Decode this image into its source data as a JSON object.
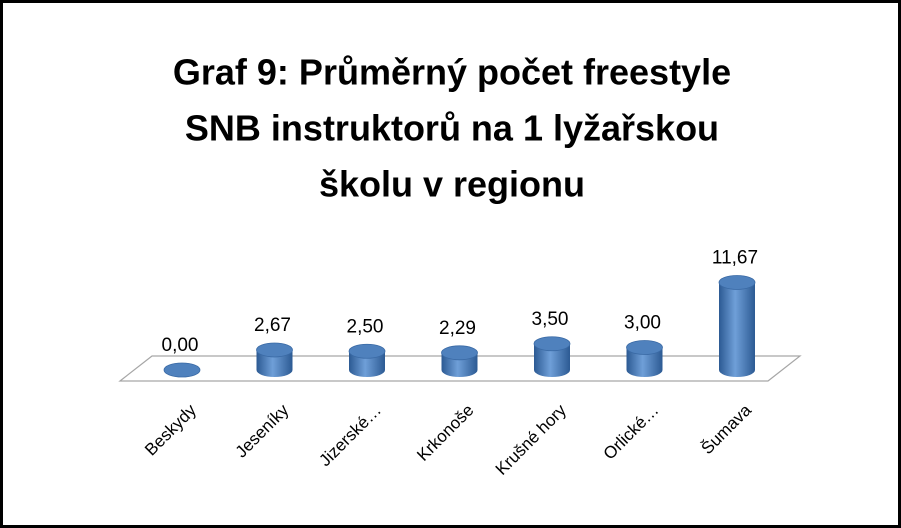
{
  "chart_data": {
    "type": "bar3d",
    "title": [
      "Graf 9: Průměrný počet freestyle",
      "SNB instruktorů na 1 lyžařskou",
      "školu v regionu"
    ],
    "categories": [
      "Beskydy",
      "Jeseníky",
      "Jizerské…",
      "Krkonoše",
      "Krušné hory",
      "Orlické…",
      "Šumava"
    ],
    "values": [
      0,
      2.67,
      2.5,
      2.29,
      3.5,
      3,
      11.67
    ],
    "value_labels": [
      "0,00",
      "2,67",
      "2,50",
      "2,29",
      "3,50",
      "3,00",
      "11,67"
    ],
    "color": "#4f81bd"
  }
}
